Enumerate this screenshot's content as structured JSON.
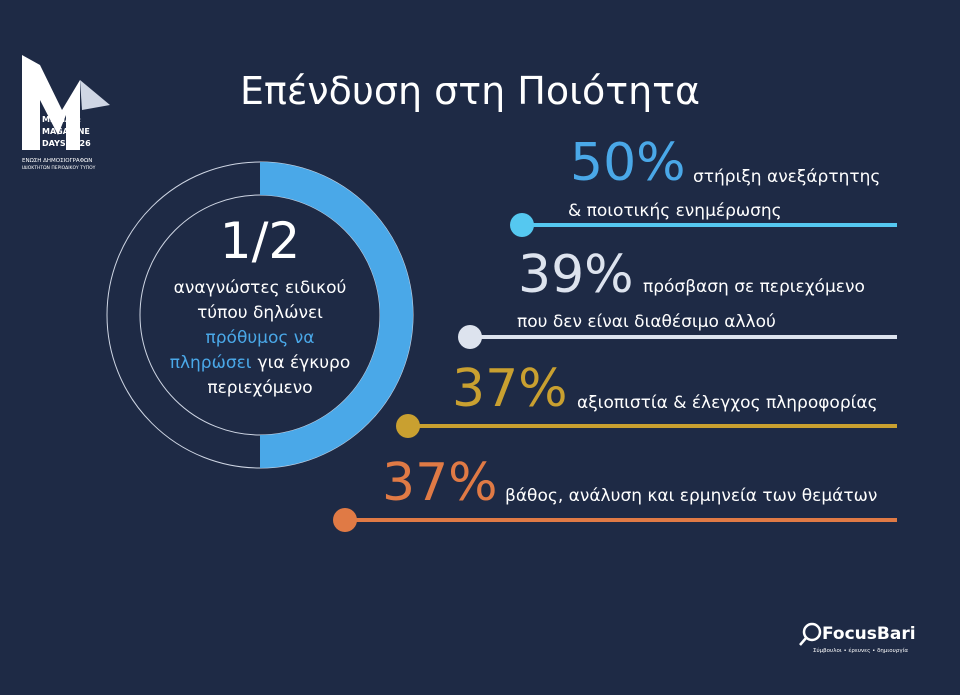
{
  "logo": {
    "lines": [
      "MEDIA &",
      "MAGAZINE",
      "DAYS 2026"
    ],
    "org": [
      "ΕΝΩΣΗ ΔΗΜΟΣΙΟΓΡΑΦΩΝ",
      "ΙΔΙΟΚΤΗΤΩΝ ΠΕΡΙΟΔΙΚΟΥ ΤΥΠΟΥ"
    ]
  },
  "title": "Επένδυση στη Ποιότητα",
  "donut": {
    "figure": "1/2",
    "line1": "αναγνώστες ειδικού",
    "line2": "τύπου δηλώνει",
    "highlight1": "πρόθυμος να",
    "highlight2": "πληρώσει",
    "line3": "για έγκυρο",
    "line4": "περιεχόμενο"
  },
  "items": [
    {
      "percent": "50%",
      "text1": "στήριξη ανεξάρτητης",
      "text2": "& ποιοτικής ενημέρωσης"
    },
    {
      "percent": "39%",
      "text1": "πρόσβαση σε περιεχόμενο",
      "text2": "που δεν είναι διαθέσιμο αλλού"
    },
    {
      "percent": "37%",
      "text1": "αξιοπιστία & έλεγχος πληροφορίας"
    },
    {
      "percent": "37%",
      "text1": "βάθος, ανάλυση και ερμηνεία των θεμάτων"
    }
  ],
  "footer": {
    "brand": "FocusBari",
    "tagline": "Σύμβουλοι • έρευνες • δημιουργία"
  }
}
